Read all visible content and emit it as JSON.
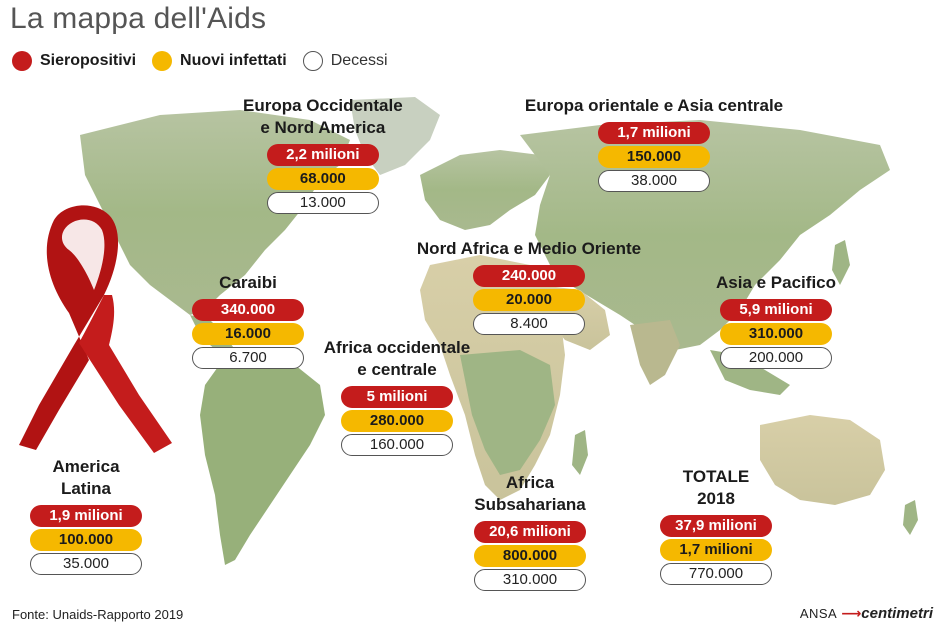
{
  "title": "La mappa dell'Aids",
  "legend": {
    "hiv": "Sieropositivi",
    "new": "Nuovi infettati",
    "deaths": "Decessi"
  },
  "colors": {
    "hiv": "#c41c1c",
    "new": "#f5b800",
    "deaths": "#ffffff",
    "land": "#a7b98a",
    "ocean": "#ffffff"
  },
  "regions": [
    {
      "name_lines": [
        "Europa Occidentale",
        "e Nord America"
      ],
      "hiv": "2,2 milioni",
      "new": "68.000",
      "deaths": "13.000"
    },
    {
      "name_lines": [
        "Europa orientale e Asia centrale"
      ],
      "hiv": "1,7 milioni",
      "new": "150.000",
      "deaths": "38.000"
    },
    {
      "name_lines": [
        "Nord Africa e Medio Oriente"
      ],
      "hiv": "240.000",
      "new": "20.000",
      "deaths": "8.400"
    },
    {
      "name_lines": [
        "Caraibi"
      ],
      "hiv": "340.000",
      "new": "16.000",
      "deaths": "6.700"
    },
    {
      "name_lines": [
        "Asia e Pacifico"
      ],
      "hiv": "5,9 milioni",
      "new": "310.000",
      "deaths": "200.000"
    },
    {
      "name_lines": [
        "Africa occidentale",
        "e centrale"
      ],
      "hiv": "5 milioni",
      "new": "280.000",
      "deaths": "160.000"
    },
    {
      "name_lines": [
        "America",
        "Latina"
      ],
      "hiv": "1,9 milioni",
      "new": "100.000",
      "deaths": "35.000"
    },
    {
      "name_lines": [
        "Africa",
        "Subsahariana"
      ],
      "hiv": "20,6 milioni",
      "new": "800.000",
      "deaths": "310.000"
    },
    {
      "name_lines": [
        "TOTALE",
        "2018"
      ],
      "hiv": "37,9 milioni",
      "new": "1,7 milioni",
      "deaths": "770.000"
    }
  ],
  "footer": {
    "source": "Fonte: Unaids-Rapporto 2019",
    "brand_ansa": "ANSA",
    "brand_centimetri": "centimetri"
  }
}
